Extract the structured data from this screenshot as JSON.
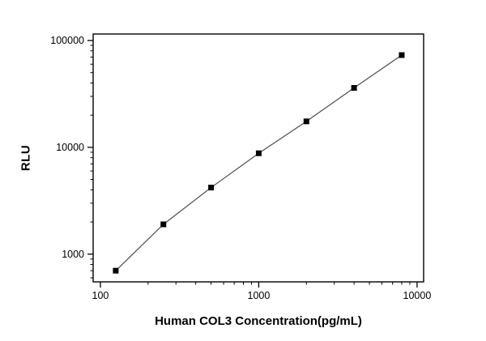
{
  "chart_data": {
    "type": "line",
    "title": "",
    "xlabel": "Human COL3 Concentration(pg/mL)",
    "ylabel": "RLU",
    "x_scale": "log",
    "y_scale": "log",
    "x": [
      125,
      250,
      500,
      1000,
      2000,
      4000,
      8000
    ],
    "y": [
      700,
      1900,
      4200,
      8800,
      17500,
      36000,
      73000
    ],
    "x_ticks": [
      100,
      1000,
      10000
    ],
    "x_tick_labels": [
      "100",
      "1000",
      "10000"
    ],
    "y_ticks": [
      1000,
      10000,
      100000
    ],
    "y_tick_labels": [
      "1000",
      "10000",
      "100000"
    ],
    "xlim": [
      90,
      11000
    ],
    "ylim": [
      550,
      115000
    ],
    "grid": false,
    "legend": "none",
    "marker": "square",
    "colors": {
      "line": "#4d4d4d",
      "marker": "#000000",
      "axis": "#000000",
      "background": "#ffffff"
    }
  }
}
